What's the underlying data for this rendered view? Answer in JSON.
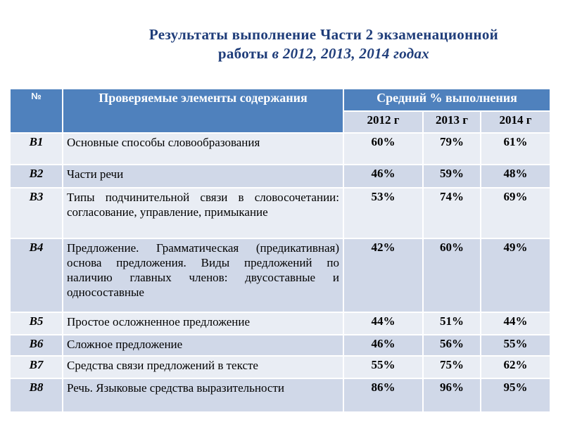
{
  "title": {
    "line1": "Результаты выполнение Части 2 экзаменационной",
    "line2_plain": "работы ",
    "line2_italic": "в 2012, 2013, 2014 годах"
  },
  "header": {
    "num": "№",
    "content": "Проверяемые элементы содержания",
    "avg": "Средний % выполнения",
    "years": [
      "2012 г",
      "2013 г",
      "2014 г"
    ]
  },
  "rows": [
    {
      "id": "B1",
      "text": "Основные способы словообразования",
      "v": [
        "60%",
        "79%",
        "61%"
      ]
    },
    {
      "id": "B2",
      "text": "Части речи",
      "v": [
        "46%",
        "59%",
        "48%"
      ]
    },
    {
      "id": "B3",
      "text": "Типы подчинительной связи в словосочетании: согласование, управление, примыкание",
      "v": [
        "53%",
        "74%",
        "69%"
      ]
    },
    {
      "id": "B4",
      "text": "Предложение. Грамматическая (предикативная) основа предложения. Виды предложений по наличию главных членов: двусоставные и односоставные",
      "v": [
        "42%",
        "60%",
        "49%"
      ]
    },
    {
      "id": "B5",
      "text": "Простое осложненное предложение",
      "v": [
        "44%",
        "51%",
        "44%"
      ]
    },
    {
      "id": "B6",
      "text": "Сложное предложение",
      "v": [
        "46%",
        "56%",
        "55%"
      ]
    },
    {
      "id": "B7",
      "text": "Средства связи предложений в тексте",
      "v": [
        "55%",
        "75%",
        "62%"
      ]
    },
    {
      "id": "B8",
      "text": "Речь. Языковые средства выразительности",
      "v": [
        "86%",
        "96%",
        "95%"
      ]
    }
  ]
}
